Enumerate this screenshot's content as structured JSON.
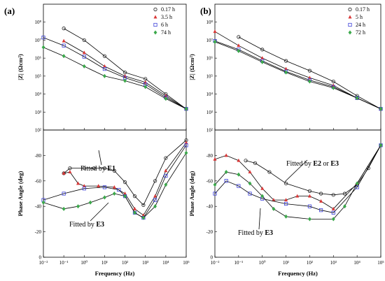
{
  "chart_data": [
    {
      "type": "scatter",
      "panel_label": "(a)",
      "xlabel": "Frequency (Hz)",
      "xscale": "log",
      "xlim": [
        0.01,
        100000
      ],
      "x_tick_labels": [
        "10⁻²",
        "10⁻¹",
        "10⁰",
        "10¹",
        "10²",
        "10³",
        "10⁴",
        "10⁵"
      ],
      "legend_position": "top-right",
      "series": [
        {
          "name": "0.17 h",
          "marker": "open-circle",
          "color": "#222222"
        },
        {
          "name": "3.5 h",
          "marker": "triangle",
          "color": "#d93636"
        },
        {
          "name": "6 h",
          "marker": "open-square",
          "color": "#3b3fd8"
        },
        {
          "name": "74 h",
          "marker": "diamond",
          "color": "#3aa84a"
        }
      ],
      "subplots": [
        {
          "ylabel": "|Z| (Ωcm²)",
          "yscale": "log",
          "ylim": [
            100,
            1000000000
          ],
          "y_tick_labels": [
            "10²",
            "10³",
            "10⁴",
            "10⁵",
            "10⁶",
            "10⁷",
            "10⁸"
          ],
          "series_data": [
            {
              "name": "0.17 h",
              "x": [
                0.1,
                1,
                10,
                100,
                1000,
                10000,
                100000
              ],
              "y": [
                45000000,
                10000000,
                1300000,
                160000,
                70000,
                10000,
                1500
              ]
            },
            {
              "name": "3.5 h",
              "x": [
                0.1,
                1,
                10,
                100,
                1000,
                10000,
                100000
              ],
              "y": [
                9000000,
                2000000,
                350000,
                100000,
                45000,
                8000,
                1500
              ]
            },
            {
              "name": "6 h",
              "x": [
                0.01,
                0.1,
                1,
                10,
                100,
                1000,
                10000,
                100000
              ],
              "y": [
                14000000,
                5000000,
                1200000,
                250000,
                80000,
                35000,
                6500,
                1500
              ]
            },
            {
              "name": "74 h",
              "x": [
                0.01,
                0.1,
                1,
                10,
                100,
                1000,
                10000,
                100000
              ],
              "y": [
                4000000,
                1300000,
                350000,
                100000,
                55000,
                25000,
                5500,
                1500
              ]
            }
          ]
        },
        {
          "ylabel": "Phase Angle (deg)",
          "yscale": "linear",
          "ylim": [
            -100,
            0
          ],
          "y_tick_labels": [
            "-80",
            "-60",
            "-40",
            "-20",
            "0"
          ],
          "series_data": [
            {
              "name": "0.17 h",
              "x": [
                0.1,
                0.2,
                1,
                3,
                10,
                30,
                100,
                300,
                800,
                3000,
                10000,
                100000
              ],
              "y": [
                -66,
                -70,
                -70,
                -70,
                -70,
                -68,
                -59,
                -48,
                -41,
                -60,
                -78,
                -92
              ]
            },
            {
              "name": "3.5 h",
              "x": [
                0.1,
                0.2,
                0.5,
                1,
                5,
                30,
                100,
                300,
                800,
                3000,
                10000,
                100000
              ],
              "y": [
                -66,
                -67,
                -58,
                -56,
                -56,
                -55,
                -50,
                -38,
                -33,
                -48,
                -68,
                -90
              ]
            },
            {
              "name": "6 h",
              "x": [
                0.01,
                0.1,
                1,
                10,
                50,
                100,
                300,
                800,
                3000,
                10000,
                100000
              ],
              "y": [
                -45,
                -50,
                -54,
                -55,
                -53,
                -48,
                -35,
                -31,
                -45,
                -64,
                -88
              ]
            },
            {
              "name": "74 h",
              "x": [
                0.01,
                0.1,
                0.5,
                2,
                10,
                30,
                100,
                300,
                800,
                3000,
                10000,
                100000
              ],
              "y": [
                -43,
                -38,
                -40,
                -43,
                -47,
                -50,
                -48,
                -35,
                -31,
                -40,
                -57,
                -82
              ]
            }
          ]
        }
      ],
      "annotations": [
        {
          "prefix": "Fitted by ",
          "model": "E1"
        },
        {
          "prefix": "Fitted by ",
          "model": "E3"
        }
      ]
    },
    {
      "type": "scatter",
      "panel_label": "(b)",
      "xlabel": "Frequency (Hz)",
      "xscale": "log",
      "xlim": [
        0.01,
        100000
      ],
      "x_tick_labels": [
        "10⁻²",
        "10⁻¹",
        "10⁰",
        "10¹",
        "10²",
        "10³",
        "10⁴",
        "10⁵"
      ],
      "legend_position": "top-right",
      "series": [
        {
          "name": "0.17 h",
          "marker": "open-circle",
          "color": "#222222"
        },
        {
          "name": "5 h",
          "marker": "triangle",
          "color": "#d93636"
        },
        {
          "name": "24 h",
          "marker": "open-square",
          "color": "#3b3fd8"
        },
        {
          "name": "72 h",
          "marker": "diamond",
          "color": "#3aa84a"
        }
      ],
      "subplots": [
        {
          "ylabel": "|Z| (Ωcm²)",
          "yscale": "log",
          "ylim": [
            100,
            1000000000
          ],
          "y_tick_labels": [
            "10²",
            "10³",
            "10⁴",
            "10⁵",
            "10⁶",
            "10⁷",
            "10⁸"
          ],
          "series_data": [
            {
              "name": "0.17 h",
              "x": [
                0.1,
                1,
                10,
                100,
                1000,
                10000,
                100000
              ],
              "y": [
                15000000,
                3000000,
                700000,
                200000,
                50000,
                8000,
                1500
              ]
            },
            {
              "name": "5 h",
              "x": [
                0.01,
                0.1,
                1,
                10,
                100,
                1000,
                10000,
                100000
              ],
              "y": [
                30000000,
                5000000,
                1000000,
                250000,
                80000,
                30000,
                6000,
                1500
              ]
            },
            {
              "name": "24 h",
              "x": [
                0.01,
                0.1,
                1,
                10,
                100,
                1000,
                10000,
                100000
              ],
              "y": [
                9000000,
                3000000,
                700000,
                180000,
                60000,
                25000,
                6000,
                1500
              ]
            },
            {
              "name": "72 h",
              "x": [
                0.01,
                0.1,
                1,
                10,
                100,
                1000,
                10000,
                100000
              ],
              "y": [
                8000000,
                2500000,
                600000,
                160000,
                50000,
                22000,
                6000,
                1500
              ]
            }
          ]
        },
        {
          "ylabel": "Phase Angle (deg)",
          "yscale": "linear",
          "ylim": [
            -100,
            0
          ],
          "y_tick_labels": [
            "-80",
            "-60",
            "-40",
            "-20",
            "0"
          ],
          "series_data": [
            {
              "name": "0.17 h",
              "x": [
                0.2,
                0.5,
                2,
                10,
                100,
                300,
                1000,
                3000,
                10000,
                30000,
                100000
              ],
              "y": [
                -76,
                -74,
                -67,
                -58,
                -52,
                -50,
                -49,
                -50,
                -57,
                -70,
                -88
              ]
            },
            {
              "name": "5 h",
              "x": [
                0.01,
                0.03,
                0.1,
                0.3,
                1,
                3,
                10,
                30,
                100,
                300,
                1000,
                10000,
                100000
              ],
              "y": [
                -77,
                -80,
                -76,
                -67,
                -54,
                -45,
                -45,
                -48,
                -48,
                -44,
                -38,
                -58,
                -88
              ]
            },
            {
              "name": "24 h",
              "x": [
                0.01,
                0.03,
                0.1,
                0.3,
                1,
                10,
                100,
                300,
                1000,
                10000,
                100000
              ],
              "y": [
                -50,
                -60,
                -56,
                -50,
                -46,
                -42,
                -40,
                -37,
                -35,
                -55,
                -88
              ]
            },
            {
              "name": "72 h",
              "x": [
                0.01,
                0.03,
                0.1,
                0.3,
                1,
                3,
                10,
                100,
                1000,
                3000,
                10000,
                100000
              ],
              "y": [
                -57,
                -67,
                -65,
                -58,
                -48,
                -38,
                -32,
                -30,
                -30,
                -40,
                -58,
                -88
              ]
            }
          ]
        }
      ],
      "annotations": [
        {
          "prefix": "Fitted by ",
          "model": "E2",
          "joiner": " or ",
          "model2": "E3"
        },
        {
          "prefix": "Fitted by ",
          "model": "E3"
        }
      ]
    }
  ]
}
